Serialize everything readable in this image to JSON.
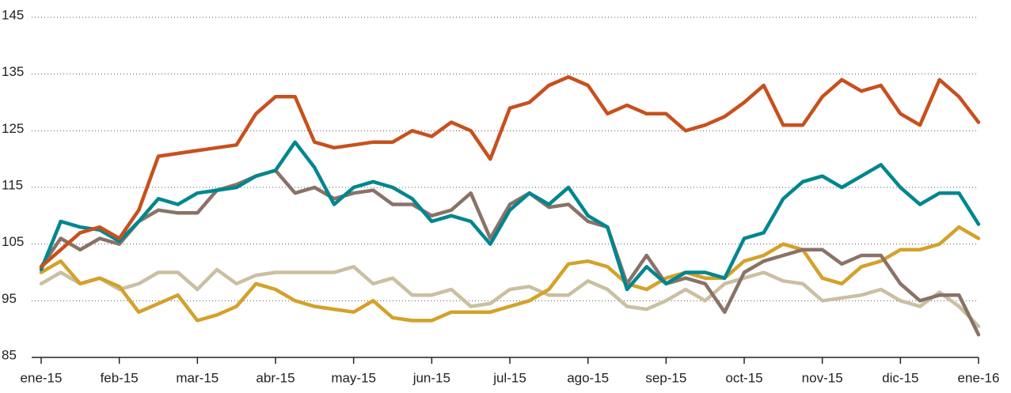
{
  "chart_data": {
    "type": "line",
    "x": [
      0,
      0.25,
      0.5,
      0.75,
      1,
      1.25,
      1.5,
      1.75,
      2,
      2.25,
      2.5,
      2.75,
      3,
      3.25,
      3.5,
      3.75,
      4,
      4.25,
      4.5,
      4.75,
      5,
      5.25,
      5.5,
      5.75,
      6,
      6.25,
      6.5,
      6.75,
      7,
      7.25,
      7.5,
      7.75,
      8,
      8.25,
      8.5,
      8.75,
      9,
      9.25,
      9.5,
      9.75,
      10,
      10.25,
      10.5,
      10.75,
      11,
      11.25,
      11.5,
      11.75,
      12
    ],
    "series": [
      {
        "color": "#cbbfa2",
        "values": [
          98,
          100,
          98,
          99,
          97,
          98,
          100,
          100,
          97,
          100.5,
          98,
          99.5,
          100,
          100,
          100,
          100,
          101,
          98,
          99,
          96,
          96,
          97,
          94,
          94.5,
          97,
          97.5,
          96,
          96,
          98.5,
          97,
          94,
          93.5,
          95,
          97,
          95,
          98,
          99,
          100,
          98.5,
          98,
          95,
          95.5,
          96,
          97,
          95,
          94,
          96.5,
          94,
          90.5
        ]
      },
      {
        "color": "#d4a12a",
        "values": [
          100,
          102,
          98,
          99,
          97.5,
          93,
          94.5,
          96,
          91.5,
          92.5,
          94,
          98,
          97,
          95,
          94,
          93.5,
          93,
          95,
          92,
          91.5,
          91.5,
          93,
          93,
          93,
          94,
          95,
          97,
          101.5,
          102,
          101,
          98,
          97,
          99,
          100,
          99,
          99,
          102,
          103,
          105,
          104,
          99,
          98,
          101,
          102,
          104,
          104,
          105,
          108,
          106
        ]
      },
      {
        "color": "#8a7268",
        "values": [
          101,
          106,
          104,
          106,
          105,
          109,
          111,
          110.5,
          110.5,
          114.5,
          115.5,
          117,
          118,
          114,
          115,
          113,
          114,
          114.5,
          112,
          112,
          110,
          111,
          114,
          106,
          112,
          114,
          111.5,
          112,
          109,
          108,
          98,
          103,
          98,
          99,
          98,
          93,
          100,
          102,
          103,
          104,
          104,
          101.5,
          103,
          103,
          98,
          95,
          96,
          96,
          89
        ]
      },
      {
        "color": "#00868f",
        "values": [
          100.5,
          109,
          108,
          107.5,
          105.5,
          109,
          113,
          112,
          114,
          114.5,
          115,
          117,
          118,
          123,
          118.5,
          112,
          115,
          116,
          115,
          113,
          109,
          110,
          109,
          105,
          111,
          114,
          112,
          115,
          110,
          108,
          97,
          101,
          98,
          100,
          100,
          99,
          106,
          107,
          113,
          116,
          117,
          115,
          117,
          119,
          115,
          112,
          114,
          114,
          108.5
        ]
      },
      {
        "color": "#c8501e",
        "values": [
          101,
          104,
          107,
          108,
          106,
          111,
          120.5,
          121,
          121.5,
          122,
          122.5,
          128,
          131,
          131,
          123,
          122,
          122.5,
          123,
          123,
          125,
          124,
          126.5,
          125,
          120,
          129,
          130,
          133,
          134.5,
          133,
          128,
          129.5,
          128,
          128,
          125,
          126,
          127.5,
          130,
          133,
          126,
          126,
          131,
          134,
          132,
          133,
          128,
          126,
          134,
          131,
          126.5
        ]
      }
    ],
    "xlim": [
      0,
      12
    ],
    "xticks": [
      {
        "value": 0,
        "label": "ene-15"
      },
      {
        "value": 1,
        "label": "feb-15"
      },
      {
        "value": 2,
        "label": "mar-15"
      },
      {
        "value": 3,
        "label": "abr-15"
      },
      {
        "value": 4,
        "label": "may-15"
      },
      {
        "value": 5,
        "label": "jun-15"
      },
      {
        "value": 6,
        "label": "jul-15"
      },
      {
        "value": 7,
        "label": "ago-15"
      },
      {
        "value": 8,
        "label": "sep-15"
      },
      {
        "value": 9,
        "label": "oct-15"
      },
      {
        "value": 10,
        "label": "nov-15"
      },
      {
        "value": 11,
        "label": "dic-15"
      },
      {
        "value": 12,
        "label": "ene-16"
      }
    ],
    "ylim": [
      85,
      145
    ],
    "yticks": [
      85,
      95,
      105,
      115,
      125,
      135,
      145
    ],
    "grid": true
  }
}
